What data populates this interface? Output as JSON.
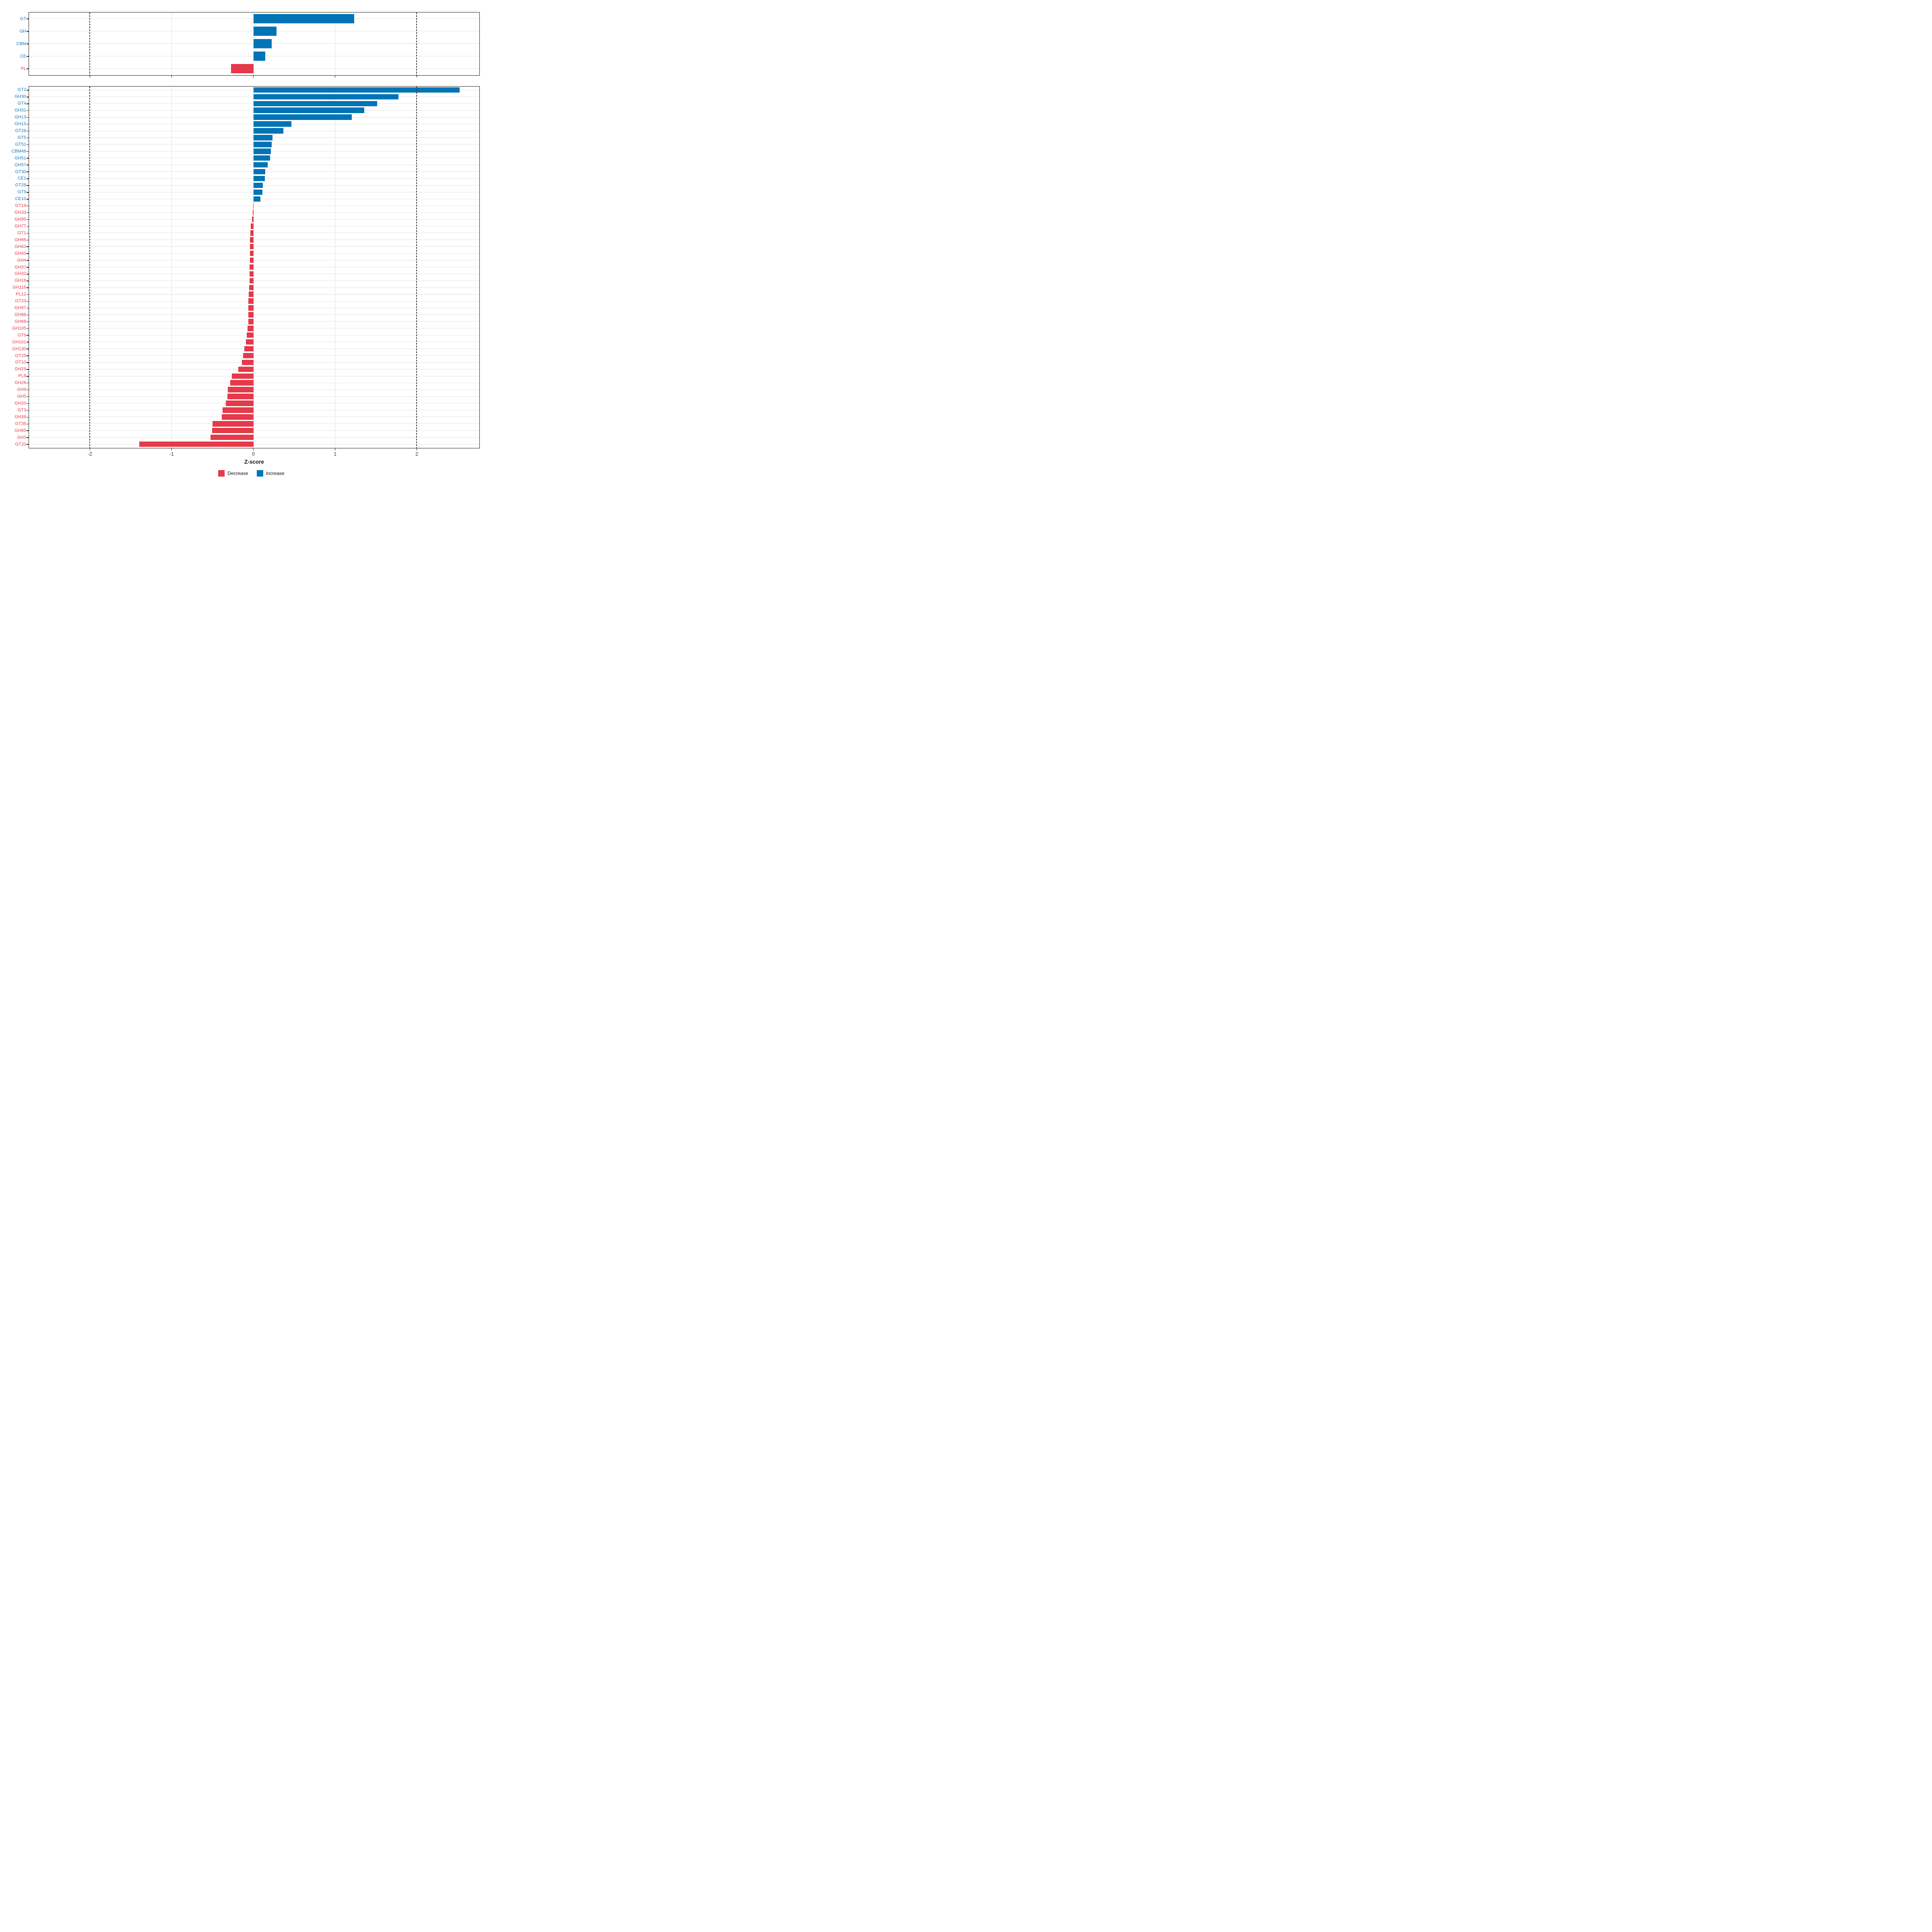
{
  "axis": {
    "title": "Z-score",
    "tick_labels": [
      "-2",
      "-1",
      "0",
      "1",
      "2"
    ],
    "tick_values": [
      -2,
      -1,
      0,
      1,
      2
    ]
  },
  "legend": {
    "items": [
      {
        "label": "Decrease",
        "color": "#e6394a"
      },
      {
        "label": "Increase",
        "color": "#0074b6"
      }
    ]
  },
  "colors": {
    "increase_bar": "#0074b6",
    "decrease_bar": "#e6394a",
    "increase_label": "#1278be",
    "decrease_label": "#e6394a",
    "gridline": "#e2e2e2",
    "reference_line": "#3d3d3d",
    "panel_border": "#1f1f1f",
    "tick_text": "#3a3a3a"
  },
  "chart_data": {
    "type": "bar",
    "orientation": "horizontal",
    "xlabel": "Z-score",
    "xlim": [
      -2.75,
      2.77
    ],
    "grid": "major-only",
    "legend_position": "bottom",
    "reference_lines": [
      -2,
      2
    ],
    "panels": [
      {
        "name": "class-level",
        "categories": [
          "GT",
          "GH",
          "CBM",
          "CE",
          "PL"
        ],
        "values": [
          1.23,
          0.28,
          0.22,
          0.14,
          -0.28
        ],
        "directions": [
          "increase",
          "increase",
          "increase",
          "increase",
          "decrease"
        ]
      },
      {
        "name": "family-level",
        "categories": [
          "GT2",
          "GH30",
          "GT4",
          "GH31",
          "GH13",
          "GH15",
          "GT26",
          "GT5",
          "GT51",
          "CBM48",
          "GH51",
          "GH57",
          "GT30",
          "CE1",
          "GT28",
          "GT9",
          "CE10",
          "GT19",
          "GH33",
          "GH95",
          "GH77",
          "GT1",
          "GH66",
          "GH63",
          "GH43",
          "GH4",
          "GH37",
          "GH32",
          "GH18",
          "GH116",
          "PL12",
          "GT23",
          "GH97",
          "GH88",
          "GH68",
          "GH105",
          "GT6",
          "GH101",
          "GH130",
          "GT25",
          "GT10",
          "GH29",
          "PL8",
          "GH26",
          "GH9",
          "GH5",
          "GH20",
          "GT3",
          "GH38",
          "GT35",
          "GH65",
          "GH3",
          "GT20"
        ],
        "values": [
          2.52,
          1.77,
          1.51,
          1.35,
          1.2,
          0.46,
          0.36,
          0.23,
          0.22,
          0.21,
          0.2,
          0.17,
          0.14,
          0.135,
          0.11,
          0.105,
          0.08,
          -0.006,
          -0.012,
          -0.02,
          -0.036,
          -0.044,
          -0.046,
          -0.047,
          -0.048,
          -0.049,
          -0.05,
          -0.051,
          -0.053,
          -0.055,
          -0.063,
          -0.064,
          -0.065,
          -0.066,
          -0.067,
          -0.075,
          -0.085,
          -0.095,
          -0.115,
          -0.13,
          -0.145,
          -0.19,
          -0.27,
          -0.29,
          -0.315,
          -0.32,
          -0.34,
          -0.38,
          -0.39,
          -0.505,
          -0.51,
          -0.53,
          -1.4
        ],
        "directions": [
          "increase",
          "increase",
          "increase",
          "increase",
          "increase",
          "increase",
          "increase",
          "increase",
          "increase",
          "increase",
          "increase",
          "increase",
          "increase",
          "increase",
          "increase",
          "increase",
          "increase",
          "decrease",
          "decrease",
          "decrease",
          "decrease",
          "decrease",
          "decrease",
          "decrease",
          "decrease",
          "decrease",
          "decrease",
          "decrease",
          "decrease",
          "decrease",
          "decrease",
          "decrease",
          "decrease",
          "decrease",
          "decrease",
          "decrease",
          "decrease",
          "decrease",
          "decrease",
          "decrease",
          "decrease",
          "decrease",
          "decrease",
          "decrease",
          "decrease",
          "decrease",
          "decrease",
          "decrease",
          "decrease",
          "decrease",
          "decrease",
          "decrease",
          "decrease"
        ]
      }
    ]
  }
}
